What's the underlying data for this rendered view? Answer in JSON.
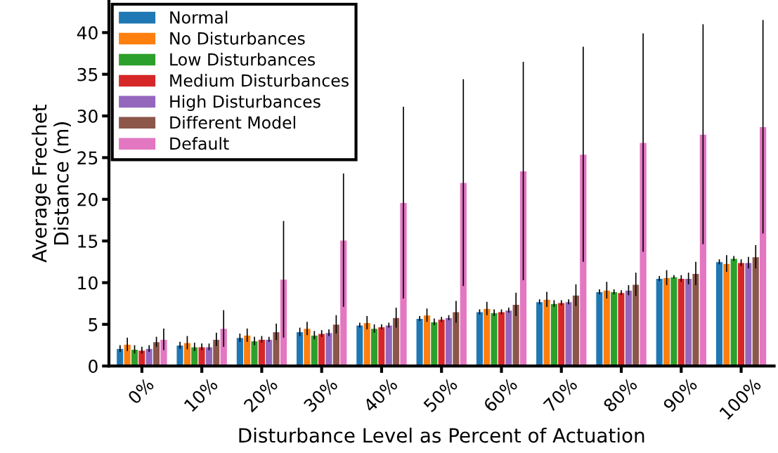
{
  "chart_data": {
    "type": "bar",
    "xlabel": "Disturbance Level as Percent of Actuation",
    "ylabel": "Average Frechet\nDistance (m)",
    "categories": [
      "0%",
      "10%",
      "20%",
      "30%",
      "40%",
      "50%",
      "60%",
      "70%",
      "80%",
      "90%",
      "100%"
    ],
    "ylim": [
      0,
      43.8
    ],
    "yticks": [
      0,
      5,
      10,
      15,
      20,
      25,
      30,
      35,
      40
    ],
    "grid": false,
    "legend": "top left",
    "series": [
      {
        "name": "Normal",
        "color": "#1f77b4",
        "values": [
          2.1,
          2.5,
          3.4,
          4.1,
          4.9,
          5.7,
          6.5,
          7.7,
          8.9,
          10.5,
          12.5
        ],
        "errors": [
          0.4,
          0.4,
          0.5,
          0.5,
          0.3,
          0.3,
          0.3,
          0.3,
          0.3,
          0.3,
          0.3
        ]
      },
      {
        "name": "No Disturbances",
        "color": "#ff7f0e",
        "values": [
          2.6,
          2.8,
          3.7,
          4.5,
          5.2,
          6.1,
          6.9,
          8.0,
          9.1,
          10.6,
          12.3
        ],
        "errors": [
          0.8,
          0.8,
          0.8,
          0.8,
          0.8,
          0.8,
          0.8,
          0.9,
          1.0,
          0.9,
          1.0
        ]
      },
      {
        "name": "Low Disturbances",
        "color": "#2ca02c",
        "values": [
          2.0,
          2.3,
          3.0,
          3.7,
          4.5,
          5.3,
          6.4,
          7.5,
          8.9,
          10.7,
          12.9
        ],
        "errors": [
          0.5,
          0.5,
          0.5,
          0.5,
          0.5,
          0.4,
          0.4,
          0.4,
          0.3,
          0.2,
          0.3
        ]
      },
      {
        "name": "Medium Disturbances",
        "color": "#d62728",
        "values": [
          1.9,
          2.3,
          3.2,
          3.9,
          4.7,
          5.6,
          6.5,
          7.6,
          8.8,
          10.5,
          12.4
        ],
        "errors": [
          0.4,
          0.4,
          0.4,
          0.4,
          0.3,
          0.3,
          0.3,
          0.3,
          0.3,
          0.4,
          0.4
        ]
      },
      {
        "name": "High Disturbances",
        "color": "#9467bd",
        "values": [
          2.1,
          2.3,
          3.2,
          4.0,
          4.9,
          5.8,
          6.7,
          7.7,
          9.1,
          10.5,
          12.4
        ],
        "errors": [
          0.4,
          0.4,
          0.3,
          0.4,
          0.3,
          0.3,
          0.3,
          0.3,
          0.6,
          0.7,
          0.7
        ]
      },
      {
        "name": "Different Model",
        "color": "#8c564b",
        "values": [
          2.9,
          3.2,
          4.1,
          5.0,
          5.8,
          6.5,
          7.4,
          8.5,
          9.8,
          11.1,
          13.1
        ],
        "errors": [
          0.6,
          0.8,
          1.0,
          1.1,
          1.2,
          1.3,
          1.4,
          1.3,
          1.4,
          1.4,
          1.4
        ]
      },
      {
        "name": "Default",
        "color": "#e377c2",
        "values": [
          3.2,
          4.5,
          10.4,
          15.1,
          19.6,
          22.0,
          23.4,
          25.4,
          26.8,
          27.8,
          28.7
        ],
        "errors": [
          1.3,
          2.2,
          7.0,
          8.0,
          11.5,
          12.4,
          13.1,
          12.9,
          13.1,
          13.2,
          12.8
        ]
      }
    ]
  }
}
